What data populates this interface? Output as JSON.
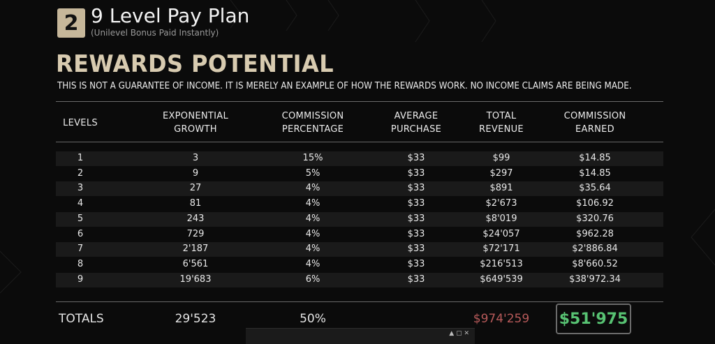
{
  "header": {
    "step_number": "2",
    "title": "9 Level Pay Plan",
    "subtitle": "(Unilevel Bonus Paid Instantly)"
  },
  "section": {
    "title": "REWARDS POTENTIAL",
    "disclaimer": "THIS IS NOT A GUARANTEE OF INCOME. IT IS MERELY AN EXAMPLE OF HOW THE REWARDS WORK. NO INCOME CLAIMS ARE BEING MADE."
  },
  "table": {
    "columns": [
      {
        "line1": "LEVELS",
        "line2": ""
      },
      {
        "line1": "EXPONENTIAL",
        "line2": "GROWTH"
      },
      {
        "line1": "COMMISSION",
        "line2": "PERCENTAGE"
      },
      {
        "line1": "AVERAGE",
        "line2": "PURCHASE"
      },
      {
        "line1": "TOTAL",
        "line2": "REVENUE"
      },
      {
        "line1": "COMMISSION",
        "line2": "EARNED"
      }
    ],
    "rows": [
      [
        "1",
        "3",
        "15%",
        "$33",
        "$99",
        "$14.85"
      ],
      [
        "2",
        "9",
        "5%",
        "$33",
        "$297",
        "$14.85"
      ],
      [
        "3",
        "27",
        "4%",
        "$33",
        "$891",
        "$35.64"
      ],
      [
        "4",
        "81",
        "4%",
        "$33",
        "$2'673",
        "$106.92"
      ],
      [
        "5",
        "243",
        "4%",
        "$33",
        "$8'019",
        "$320.76"
      ],
      [
        "6",
        "729",
        "4%",
        "$33",
        "$24'057",
        "$962.28"
      ],
      [
        "7",
        "2'187",
        "4%",
        "$33",
        "$72'171",
        "$2'886.84"
      ],
      [
        "8",
        "6'561",
        "4%",
        "$33",
        "$216'513",
        "$8'660.52"
      ],
      [
        "9",
        "19'683",
        "6%",
        "$33",
        "$649'539",
        "$38'972.34"
      ]
    ],
    "totals": {
      "label": "TOTALS",
      "growth": "29'523",
      "percentage": "50%",
      "revenue": "$974'259",
      "earned": "$51'975"
    }
  },
  "colors": {
    "accent_gold": "#d8cbb0",
    "revenue_red": "#b85a5a",
    "earned_green": "#58c373"
  },
  "player_strip": {
    "icons": [
      "pin-icon",
      "resize-icon",
      "close-icon"
    ]
  }
}
